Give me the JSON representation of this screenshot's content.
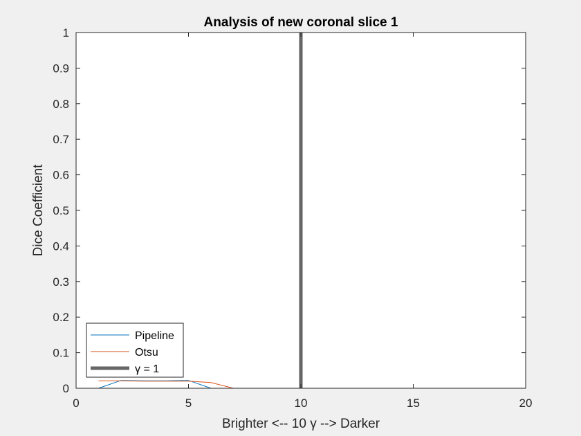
{
  "chart_data": {
    "type": "line",
    "title": "Analysis of new coronal slice 1",
    "xlabel": "Brighter <-- 10 γ --> Darker",
    "ylabel": "Dice Coefficient",
    "xlim": [
      0,
      20
    ],
    "ylim": [
      0,
      1
    ],
    "xticks": [
      0,
      5,
      10,
      15,
      20
    ],
    "yticks": [
      0,
      0.1,
      0.2,
      0.3,
      0.4,
      0.5,
      0.6,
      0.7,
      0.8,
      0.9,
      1
    ],
    "ytick_labels": [
      "0",
      "0.1",
      "0.2",
      "0.3",
      "0.4",
      "0.5",
      "0.6",
      "0.7",
      "0.8",
      "0.9",
      "1"
    ],
    "grid": false,
    "legend_position": "bottom-left",
    "series": [
      {
        "name": "Pipeline",
        "color": "#0072BD",
        "x": [
          1,
          2,
          3,
          4,
          5,
          6,
          7,
          8,
          9,
          10,
          11,
          12,
          13,
          14,
          15,
          16,
          17,
          18,
          19,
          20
        ],
        "y": [
          0.0,
          0.022,
          0.021,
          0.021,
          0.022,
          0.0,
          0.0,
          0.0,
          0.0,
          0.0,
          0.0,
          0.0,
          0.0,
          0.0,
          0.0,
          0.0,
          0.0,
          0.0,
          0.0,
          0.0
        ]
      },
      {
        "name": "Otsu",
        "color": "#D95319",
        "x": [
          1,
          2,
          3,
          4,
          5,
          6,
          7,
          8,
          9,
          10,
          11,
          12,
          13,
          14,
          15,
          16,
          17,
          18,
          19,
          20
        ],
        "y": [
          0.021,
          0.021,
          0.02,
          0.02,
          0.02,
          0.016,
          0.0,
          0.0,
          0.0,
          0.0,
          0.0,
          0.0,
          0.0,
          0.0,
          0.0,
          0.0,
          0.0,
          0.0,
          0.0,
          0.0
        ]
      }
    ],
    "reference_line": {
      "name": "γ = 1",
      "x": 10,
      "color": "#666666"
    }
  }
}
